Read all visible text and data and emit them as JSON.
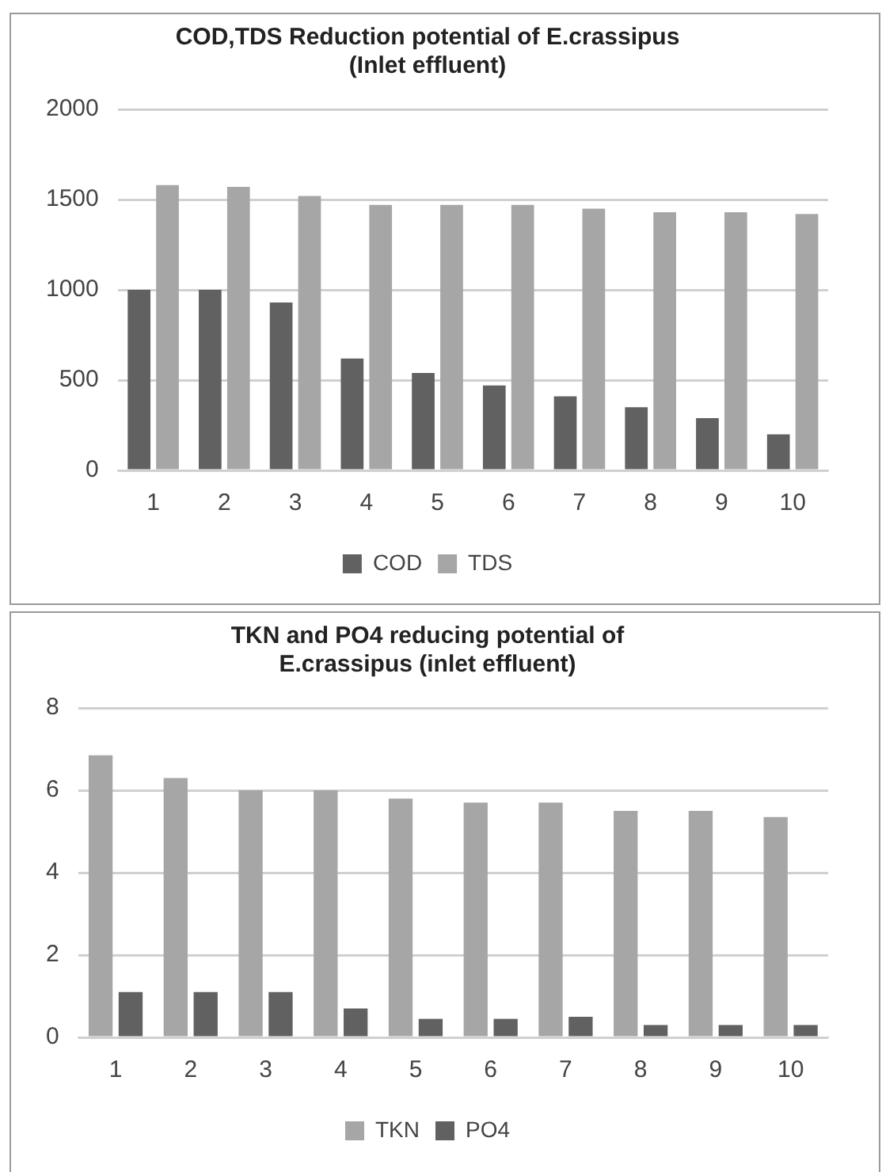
{
  "chart_data": [
    {
      "type": "bar",
      "title": [
        "COD,TDS Reduction potential of E.crassipus",
        "(Inlet effluent)"
      ],
      "categories": [
        "1",
        "2",
        "3",
        "4",
        "5",
        "6",
        "7",
        "8",
        "9",
        "10"
      ],
      "series": [
        {
          "name": "COD",
          "color": "#616161",
          "values": [
            1000,
            1000,
            930,
            620,
            540,
            470,
            410,
            350,
            290,
            200
          ]
        },
        {
          "name": "TDS",
          "color": "#a6a6a6",
          "values": [
            1580,
            1570,
            1520,
            1470,
            1470,
            1470,
            1450,
            1430,
            1430,
            1420
          ]
        }
      ],
      "ylim": [
        0,
        2000
      ],
      "yticks": [
        0,
        500,
        1000,
        1500,
        2000
      ],
      "grid": "y",
      "legend": "bottom"
    },
    {
      "type": "bar",
      "title": [
        "TKN and PO4 reducing potential of",
        "E.crassipus (inlet effluent)"
      ],
      "categories": [
        "1",
        "2",
        "3",
        "4",
        "5",
        "6",
        "7",
        "8",
        "9",
        "10"
      ],
      "series": [
        {
          "name": "TKN",
          "color": "#a6a6a6",
          "values": [
            6.85,
            6.3,
            6.0,
            6.0,
            5.8,
            5.7,
            5.7,
            5.5,
            5.5,
            5.35
          ]
        },
        {
          "name": "PO4",
          "color": "#616161",
          "values": [
            1.1,
            1.1,
            1.1,
            0.7,
            0.45,
            0.45,
            0.5,
            0.3,
            0.3,
            0.3
          ]
        }
      ],
      "ylim": [
        0,
        8
      ],
      "yticks": [
        0,
        2,
        4,
        6,
        8
      ],
      "grid": "y",
      "legend": "bottom"
    }
  ]
}
